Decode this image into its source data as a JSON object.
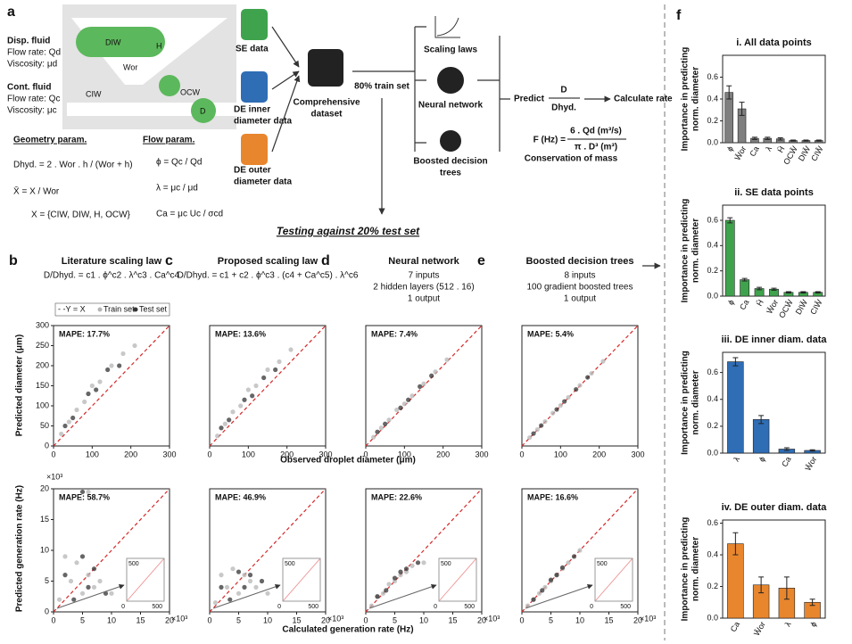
{
  "panel_a": {
    "label": "a",
    "disp_fluid": "Disp. fluid",
    "disp_rate": "Flow rate: Qd",
    "disp_visc": "Viscosity: μd",
    "cont_fluid": "Cont. fluid",
    "cont_rate": "Flow rate: Qc",
    "cont_visc": "Viscosity: μc",
    "schematic_labels": [
      "DIW",
      "H",
      "Wor",
      "CIW",
      "OCW",
      "D"
    ],
    "geometry_title": "Geometry param.",
    "geometry_formulas": [
      "Dhyd. = 2 . Wor . h / (Wor + h)",
      "X̄ = X / Wor",
      "X = {CIW, DIW, H, OCW}"
    ],
    "flow_title": "Flow param.",
    "flow_formulas": [
      "ϕ = Qc / Qd",
      "λ = μc / μd",
      "Ca = μc Uc / σcd"
    ]
  },
  "workflow": {
    "se_data": "SE data",
    "de_inner": [
      "DE inner",
      "diameter data"
    ],
    "de_outer": [
      "DE outer",
      "diameter data"
    ],
    "dataset": [
      "Comprehensive",
      "dataset"
    ],
    "train": "80% train set",
    "scaling": "Scaling laws",
    "nn": "Neural network",
    "bdt": [
      "Boosted decision",
      "trees"
    ],
    "predict": "Predict",
    "ratio": [
      "D",
      "Dhyd."
    ],
    "calc": "Calculate rate",
    "rate_formula": [
      "F (Hz) = ",
      "6 . Qd (m³/s)",
      "π . D³ (m³)"
    ],
    "conservation": "Conservation of mass",
    "testing": "Testing against 20% test set"
  },
  "methods": [
    {
      "label": "b",
      "title": "Literature scaling law",
      "lines": [
        "D/Dhyd. = c1 . ϕ^c2 . λ^c3 . Ca^c4"
      ]
    },
    {
      "label": "c",
      "title": "Proposed scaling law",
      "lines": [
        "D/Dhyd. = c1 + c2 . ϕ^c3 . (c4 + Ca^c5) . λ^c6"
      ]
    },
    {
      "label": "d",
      "title": "Neural network",
      "lines": [
        "7 inputs",
        "2 hidden layers (512 . 16)",
        "1 output"
      ]
    },
    {
      "label": "e",
      "title": "Boosted decision trees",
      "lines": [
        "8 inputs",
        "100 gradient boosted trees",
        "1 output"
      ]
    }
  ],
  "legend": {
    "diagonal": "- -Y = X",
    "train": "Train set",
    "test": "Test set"
  },
  "axis_titles": {
    "y_diameter": "Predicted diameter (μm)",
    "x_diameter": "Observed droplet diameter (μm)",
    "y_rate": "Predicted generation rate (Hz)",
    "x_rate": "Calculated generation rate (Hz)",
    "scale": "×10³"
  },
  "inset_ticks": [
    "0",
    "500"
  ],
  "panel_f": {
    "label": "f",
    "ylabel": [
      "Importance in predicting",
      "norm. diameter"
    ]
  },
  "chart_data": [
    {
      "type": "scatter",
      "annotation": "MAPE: 17.7%",
      "xlim": [
        0,
        300
      ],
      "ylim": [
        0,
        300
      ],
      "xticks": [
        0,
        100,
        200,
        300
      ],
      "yticks": [
        0,
        50,
        100,
        150,
        200,
        250,
        300
      ],
      "series": [
        {
          "color": "#b5b5b5",
          "x": [
            20,
            40,
            60,
            80,
            100,
            120,
            150,
            180,
            210
          ],
          "y": [
            30,
            60,
            90,
            110,
            150,
            160,
            200,
            230,
            250
          ]
        },
        {
          "color": "#333333",
          "x": [
            30,
            50,
            90,
            110,
            140,
            170
          ],
          "y": [
            50,
            70,
            130,
            140,
            190,
            200
          ]
        }
      ]
    },
    {
      "type": "scatter",
      "annotation": "MAPE: 13.6%",
      "xlim": [
        0,
        300
      ],
      "ylim": [
        0,
        300
      ],
      "xticks": [
        0,
        100,
        200,
        300
      ],
      "series": [
        {
          "color": "#b5b5b5",
          "x": [
            20,
            40,
            60,
            80,
            100,
            120,
            150,
            180,
            210
          ],
          "y": [
            25,
            55,
            85,
            100,
            140,
            150,
            190,
            210,
            240
          ]
        },
        {
          "color": "#333333",
          "x": [
            30,
            50,
            90,
            110,
            140,
            170
          ],
          "y": [
            45,
            65,
            115,
            125,
            170,
            190
          ]
        }
      ]
    },
    {
      "type": "scatter",
      "annotation": "MAPE: 7.4%",
      "xlim": [
        0,
        300
      ],
      "ylim": [
        0,
        300
      ],
      "xticks": [
        0,
        100,
        200,
        300
      ],
      "series": [
        {
          "color": "#b5b5b5",
          "x": [
            20,
            40,
            60,
            80,
            100,
            120,
            150,
            180,
            210
          ],
          "y": [
            22,
            45,
            65,
            90,
            105,
            125,
            155,
            185,
            215
          ]
        },
        {
          "color": "#333333",
          "x": [
            30,
            50,
            90,
            110,
            140,
            170
          ],
          "y": [
            35,
            55,
            95,
            115,
            148,
            175
          ]
        }
      ]
    },
    {
      "type": "scatter",
      "annotation": "MAPE: 5.4%",
      "xlim": [
        0,
        300
      ],
      "ylim": [
        0,
        300
      ],
      "xticks": [
        0,
        100,
        200,
        300
      ],
      "series": [
        {
          "color": "#b5b5b5",
          "x": [
            20,
            40,
            60,
            80,
            100,
            120,
            150,
            180,
            210
          ],
          "y": [
            21,
            41,
            61,
            82,
            101,
            121,
            151,
            181,
            211
          ]
        },
        {
          "color": "#333333",
          "x": [
            30,
            50,
            90,
            110,
            140,
            170
          ],
          "y": [
            31,
            51,
            91,
            111,
            141,
            171
          ]
        }
      ]
    },
    {
      "type": "scatter",
      "annotation": "MAPE: 58.7%",
      "xlim": [
        0,
        20
      ],
      "ylim": [
        0,
        20
      ],
      "xticks": [
        0,
        5,
        10,
        15,
        20
      ],
      "yticks": [
        0,
        5,
        10,
        15,
        20
      ],
      "inset": true,
      "series": [
        {
          "color": "#b5b5b5",
          "x": [
            1,
            2,
            3,
            4,
            5,
            6,
            7,
            8,
            10,
            6
          ],
          "y": [
            2,
            9,
            5,
            8,
            3,
            6,
            4,
            5,
            3,
            19.5
          ]
        },
        {
          "color": "#333333",
          "x": [
            2,
            3.5,
            5,
            6,
            7,
            9,
            5
          ],
          "y": [
            6,
            2,
            9,
            4,
            7,
            3,
            19.5
          ]
        }
      ]
    },
    {
      "type": "scatter",
      "annotation": "MAPE: 46.9%",
      "xlim": [
        0,
        20
      ],
      "ylim": [
        0,
        20
      ],
      "xticks": [
        0,
        5,
        10,
        15,
        20
      ],
      "inset": true,
      "series": [
        {
          "color": "#b5b5b5",
          "x": [
            1,
            2,
            3,
            4,
            5,
            6,
            7,
            8,
            10
          ],
          "y": [
            1.5,
            6,
            4,
            7,
            3,
            6,
            5,
            4,
            3
          ]
        },
        {
          "color": "#333333",
          "x": [
            2,
            3.5,
            5,
            6,
            7,
            9
          ],
          "y": [
            4,
            2,
            6.5,
            4,
            6,
            5
          ]
        }
      ]
    },
    {
      "type": "scatter",
      "annotation": "MAPE: 22.6%",
      "xlim": [
        0,
        20
      ],
      "ylim": [
        0,
        20
      ],
      "xticks": [
        0,
        5,
        10,
        15,
        20
      ],
      "inset": true,
      "series": [
        {
          "color": "#b5b5b5",
          "x": [
            1,
            2,
            3,
            4,
            5,
            6,
            7,
            8,
            10
          ],
          "y": [
            1,
            2.5,
            3,
            4.5,
            5,
            6,
            6.5,
            7.5,
            8
          ]
        },
        {
          "color": "#333333",
          "x": [
            2,
            3.5,
            5,
            6,
            7,
            9
          ],
          "y": [
            2.5,
            3.5,
            5.5,
            6.5,
            7,
            8
          ]
        }
      ]
    },
    {
      "type": "scatter",
      "annotation": "MAPE: 16.6%",
      "xlim": [
        0,
        20
      ],
      "ylim": [
        0,
        20
      ],
      "xticks": [
        0,
        5,
        10,
        15,
        20
      ],
      "inset": true,
      "series": [
        {
          "color": "#b5b5b5",
          "x": [
            1,
            2,
            3,
            4,
            5,
            6,
            7,
            8,
            10
          ],
          "y": [
            1,
            2,
            3,
            4,
            5,
            6,
            7,
            8,
            10
          ]
        },
        {
          "color": "#333333",
          "x": [
            2,
            3.5,
            5,
            6,
            7,
            9
          ],
          "y": [
            2,
            3.5,
            5.2,
            6,
            7.2,
            9
          ]
        }
      ]
    },
    {
      "type": "bar",
      "title": "i. All data points",
      "color": "#7f7f7f",
      "categories": [
        "ϕ",
        "W̄or",
        "Ca",
        "λ",
        "H̄",
        "OCW̄",
        "DIW̄",
        "CIW̄"
      ],
      "values": [
        0.46,
        0.31,
        0.04,
        0.04,
        0.035,
        0.02,
        0.02,
        0.02
      ],
      "errors": [
        0.06,
        0.06,
        0.01,
        0.01,
        0.01,
        0.005,
        0.005,
        0.005
      ],
      "ylim": [
        0,
        0.8
      ],
      "yticks": [
        {
          "value": 0,
          "label": "0.0"
        },
        {
          "value": 0.2,
          "label": "0.2"
        },
        {
          "value": 0.4,
          "label": "0.4"
        },
        {
          "value": 0.6,
          "label": "0.6"
        }
      ]
    },
    {
      "type": "bar",
      "title": "ii. SE data points",
      "color": "#3fa34d",
      "categories": [
        "ϕ",
        "Ca",
        "H̄",
        "W̄or",
        "OCW̄",
        "DIW̄",
        "CIW̄"
      ],
      "values": [
        0.6,
        0.13,
        0.06,
        0.055,
        0.03,
        0.03,
        0.03
      ],
      "errors": [
        0.02,
        0.01,
        0.01,
        0.008,
        0.005,
        0.005,
        0.005
      ],
      "ylim": [
        0,
        0.72
      ],
      "yticks": [
        {
          "value": 0,
          "label": "0.0"
        },
        {
          "value": 0.2,
          "label": "0.2"
        },
        {
          "value": 0.4,
          "label": "0.4"
        },
        {
          "value": 0.6,
          "label": "0.6"
        }
      ]
    },
    {
      "type": "bar",
      "title": "iii. DE inner diam. data",
      "color": "#2f6db5",
      "categories": [
        "λ",
        "ϕ",
        "Ca",
        "W̄or"
      ],
      "values": [
        0.68,
        0.25,
        0.03,
        0.02
      ],
      "errors": [
        0.03,
        0.03,
        0.01,
        0.005
      ],
      "ylim": [
        0,
        0.75
      ],
      "yticks": [
        {
          "value": 0,
          "label": "0.0"
        },
        {
          "value": 0.2,
          "label": "0.2"
        },
        {
          "value": 0.4,
          "label": "0.4"
        },
        {
          "value": 0.6,
          "label": "0.6"
        }
      ]
    },
    {
      "type": "bar",
      "title": "iv. DE outer diam. data",
      "color": "#e8862e",
      "categories": [
        "Ca",
        "W̄or",
        "λ",
        "ϕ"
      ],
      "values": [
        0.47,
        0.21,
        0.19,
        0.1
      ],
      "errors": [
        0.07,
        0.05,
        0.07,
        0.02
      ],
      "ylim": [
        0,
        0.62
      ],
      "yticks": [
        {
          "value": 0,
          "label": "0.0"
        },
        {
          "value": 0.2,
          "label": "0.2"
        },
        {
          "value": 0.4,
          "label": "0.4"
        },
        {
          "value": 0.6,
          "label": "0.6"
        }
      ]
    }
  ]
}
